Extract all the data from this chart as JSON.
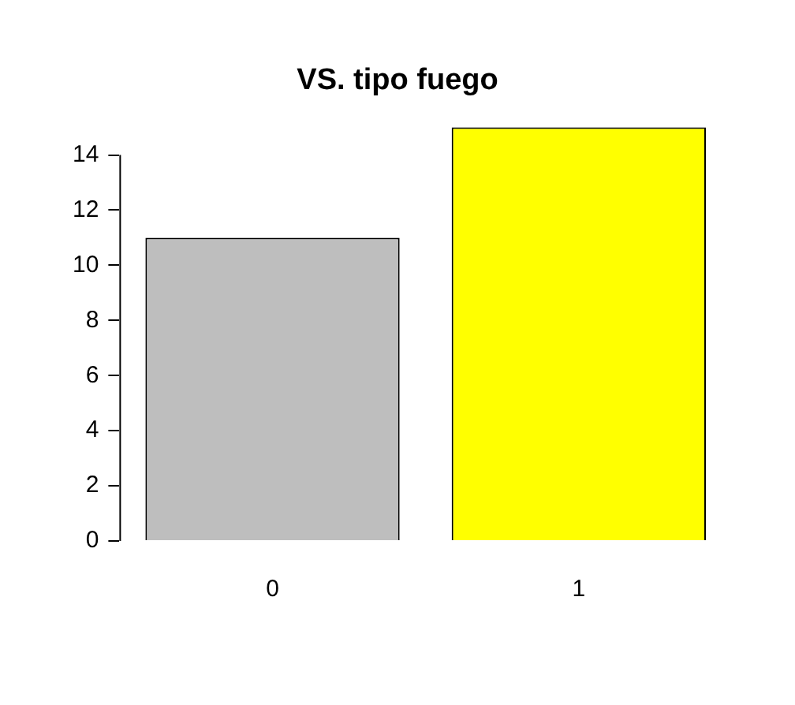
{
  "chart_data": {
    "type": "bar",
    "title": "VS. tipo fuego",
    "categories": [
      "0",
      "1"
    ],
    "values": [
      11,
      15
    ],
    "colors": [
      "#bebebe",
      "#ffff00"
    ],
    "ylim": [
      0,
      15
    ],
    "yticks": [
      0,
      2,
      4,
      6,
      8,
      10,
      12,
      14
    ],
    "grid": false,
    "legend": false
  }
}
